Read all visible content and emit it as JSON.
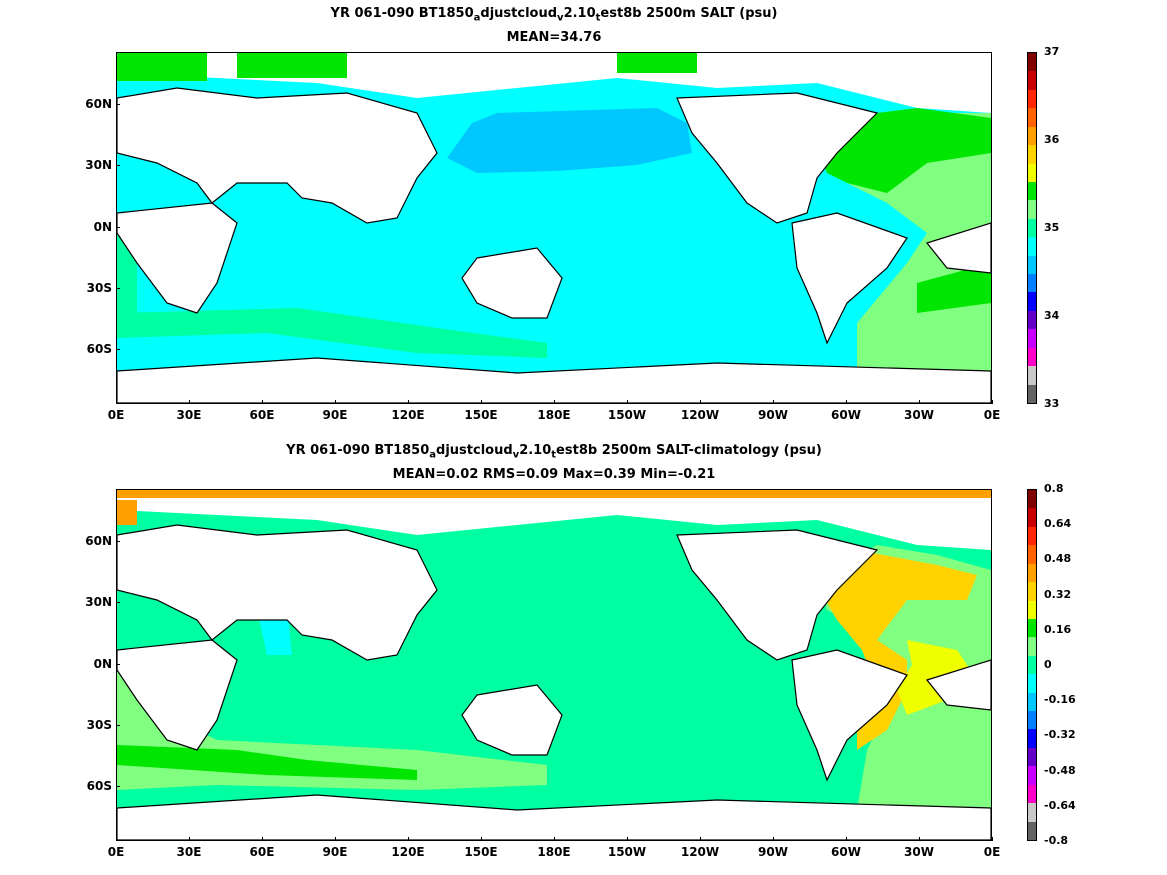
{
  "top": {
    "title_line1_pre": "YR 061-090 BT1850",
    "title_sub1": "a",
    "title_mid1": "djustcloud",
    "title_sub2": "v",
    "title_mid2": "2.10",
    "title_sub3": "t",
    "title_post": "est8b 2500m SALT (psu)",
    "title_line2": "MEAN=34.76",
    "colorbar": {
      "labels": [
        "37",
        "36",
        "35",
        "34",
        "33"
      ],
      "colors": [
        "#800000",
        "#c80000",
        "#ff2800",
        "#ff6400",
        "#ffa000",
        "#ffd200",
        "#f0ff00",
        "#00e600",
        "#80ff80",
        "#00ffa0",
        "#00ffff",
        "#00c8ff",
        "#0080ff",
        "#0000ff",
        "#6400c8",
        "#c800ff",
        "#ff00c8",
        "#c8c8c8",
        "#646464"
      ],
      "ticks_values": [
        37,
        36,
        35,
        34,
        33
      ]
    },
    "fields": {
      "background": "#00ffff",
      "north_pacific": "#00c8ff",
      "southern_band": "#00ffa0",
      "atlantic_south": "#80ff80",
      "atlantic_north": "#00e600"
    }
  },
  "bottom": {
    "title_line1_pre": "YR 061-090 BT1850",
    "title_sub1": "a",
    "title_mid1": "djustcloud",
    "title_sub2": "v",
    "title_mid2": "2.10",
    "title_sub3": "t",
    "title_post": "est8b 2500m SALT-climatology (psu)",
    "title_line2": "MEAN=0.02   RMS=0.09   Max=0.39   Min=-0.21",
    "colorbar": {
      "labels": [
        "0.8",
        "0.64",
        "0.48",
        "0.32",
        "0.16",
        "0",
        "-0.16",
        "-0.32",
        "-0.48",
        "-0.64",
        "-0.8"
      ],
      "colors": [
        "#800000",
        "#c80000",
        "#ff2800",
        "#ff6400",
        "#ffa000",
        "#ffd200",
        "#f0ff00",
        "#00e600",
        "#80ff80",
        "#00ffa0",
        "#00ffff",
        "#00c8ff",
        "#0080ff",
        "#0000ff",
        "#6400c8",
        "#c800ff",
        "#ff00c8",
        "#c8c8c8",
        "#646464"
      ],
      "ticks_values": [
        0.8,
        0.64,
        0.48,
        0.32,
        0.16,
        0,
        -0.16,
        -0.32,
        -0.48,
        -0.64,
        -0.8
      ]
    },
    "fields": {
      "background": "#00ffa0",
      "atlantic": "#ffd200",
      "atlantic_eq": "#f0ff00",
      "southern_green": "#80ff80",
      "southern_bright": "#00e600",
      "arctic": "#ffa000",
      "indian_blue": "#00ffff"
    }
  },
  "axes": {
    "lat_labels": [
      "60N",
      "30N",
      "0N",
      "30S",
      "60S"
    ],
    "lon_labels": [
      "0E",
      "30E",
      "60E",
      "90E",
      "120E",
      "150E",
      "180E",
      "150W",
      "120W",
      "90W",
      "60W",
      "30W",
      "0E"
    ]
  }
}
